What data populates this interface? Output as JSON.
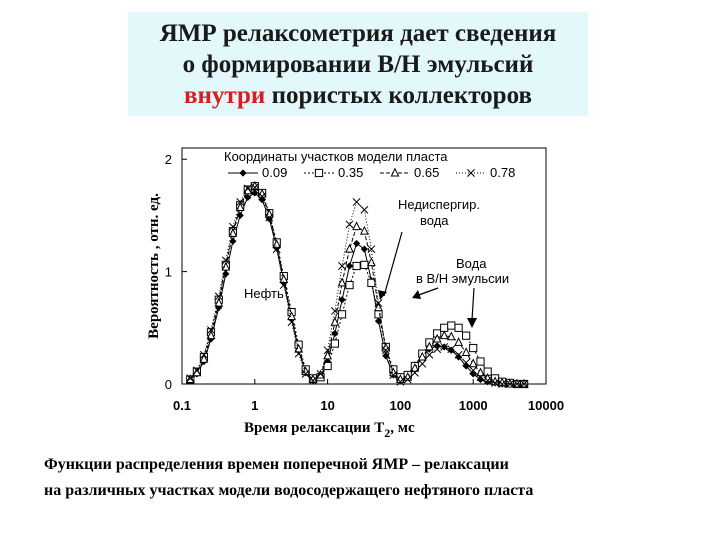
{
  "slide": {
    "title_line1": "ЯМР релаксометрия дает сведения",
    "title_line2": "о формировании В/Н эмульсий",
    "title_line3_accent": "внутри",
    "title_line3_rest": " пористых коллекторов",
    "accent_color": "#d62020",
    "title_bg": "#e3f8fb",
    "caption_line1": "Функции распределения времен поперечной ЯМР – релаксации",
    "caption_line2": "на различных участках модели водосодержащего нефтяного пласта"
  },
  "chart_data": {
    "type": "line",
    "title": "",
    "ylabel": "Вероятность    ,   отн. ед.",
    "xlabel_main": "Время релаксации T",
    "xlabel_sub": "2",
    "xlabel_unit": ",   мс",
    "x_scale": "log",
    "xlim": [
      0.1,
      10000
    ],
    "ylim": [
      0,
      2.1
    ],
    "x_ticks": [
      0.1,
      1,
      10,
      100,
      1000,
      10000
    ],
    "x_tick_labels": [
      "0.1",
      "1",
      "10",
      "100",
      "1000",
      "10000"
    ],
    "y_ticks": [
      0,
      1,
      2
    ],
    "y_tick_labels": [
      "0",
      "1",
      "2"
    ],
    "legend": {
      "title": "Координаты участков модели пласта",
      "placement": "top-center"
    },
    "annotations": [
      {
        "text": "Нефть"
      },
      {
        "text": "Недиспергир."
      },
      {
        "text": "вода"
      },
      {
        "text": "Вода"
      },
      {
        "text": "в В/Н эмульсии"
      }
    ],
    "series": [
      {
        "name": "0.09",
        "marker": "diamond",
        "x": [
          0.13,
          0.16,
          0.2,
          0.25,
          0.32,
          0.4,
          0.5,
          0.63,
          0.8,
          1,
          1.26,
          1.58,
          2,
          2.5,
          3.2,
          4,
          5,
          6.3,
          8,
          10,
          12.6,
          15.8,
          20,
          25,
          32,
          40,
          50,
          63,
          80,
          100,
          126,
          158,
          200,
          250,
          320,
          400,
          500,
          630,
          800,
          1000,
          1260,
          1580,
          2000,
          2500,
          3200,
          4000,
          5000
        ],
        "values": [
          0.03,
          0.09,
          0.2,
          0.4,
          0.68,
          0.98,
          1.27,
          1.5,
          1.66,
          1.7,
          1.64,
          1.47,
          1.21,
          0.9,
          0.58,
          0.3,
          0.1,
          0.03,
          0.06,
          0.2,
          0.45,
          0.75,
          1.05,
          1.25,
          1.2,
          0.92,
          0.56,
          0.25,
          0.08,
          0.04,
          0.08,
          0.17,
          0.25,
          0.31,
          0.34,
          0.33,
          0.3,
          0.24,
          0.16,
          0.09,
          0.04,
          0.02,
          0.01,
          0.0,
          0.0,
          0.0,
          0.0
        ]
      },
      {
        "name": "0.35",
        "marker": "square",
        "x": [
          0.13,
          0.16,
          0.2,
          0.25,
          0.32,
          0.4,
          0.5,
          0.63,
          0.8,
          1,
          1.26,
          1.58,
          2,
          2.5,
          3.2,
          4,
          5,
          6.3,
          8,
          10,
          12.6,
          15.8,
          20,
          25,
          32,
          40,
          50,
          63,
          80,
          100,
          126,
          158,
          200,
          250,
          320,
          400,
          500,
          630,
          800,
          1000,
          1260,
          1580,
          2000,
          2500,
          3200,
          4000,
          5000
        ],
        "values": [
          0.04,
          0.11,
          0.24,
          0.46,
          0.75,
          1.06,
          1.36,
          1.59,
          1.73,
          1.76,
          1.7,
          1.52,
          1.26,
          0.96,
          0.64,
          0.35,
          0.13,
          0.05,
          0.06,
          0.16,
          0.36,
          0.62,
          0.88,
          1.05,
          1.06,
          0.9,
          0.62,
          0.33,
          0.13,
          0.06,
          0.08,
          0.16,
          0.27,
          0.37,
          0.45,
          0.5,
          0.52,
          0.5,
          0.43,
          0.32,
          0.2,
          0.11,
          0.05,
          0.02,
          0.01,
          0.0,
          0.0
        ]
      },
      {
        "name": "0.65",
        "marker": "triangle",
        "x": [
          0.13,
          0.16,
          0.2,
          0.25,
          0.32,
          0.4,
          0.5,
          0.63,
          0.8,
          1,
          1.26,
          1.58,
          2,
          2.5,
          3.2,
          4,
          5,
          6.3,
          8,
          10,
          12.6,
          15.8,
          20,
          25,
          32,
          40,
          50,
          63,
          80,
          100,
          126,
          158,
          200,
          250,
          320,
          400,
          500,
          630,
          800,
          1000,
          1260,
          1580,
          2000,
          2500,
          3200,
          4000,
          5000
        ],
        "values": [
          0.04,
          0.1,
          0.22,
          0.43,
          0.72,
          1.04,
          1.34,
          1.57,
          1.72,
          1.76,
          1.69,
          1.51,
          1.24,
          0.93,
          0.6,
          0.31,
          0.11,
          0.04,
          0.08,
          0.25,
          0.55,
          0.9,
          1.2,
          1.4,
          1.36,
          1.08,
          0.68,
          0.32,
          0.1,
          0.04,
          0.06,
          0.14,
          0.24,
          0.33,
          0.4,
          0.43,
          0.42,
          0.37,
          0.28,
          0.18,
          0.1,
          0.05,
          0.02,
          0.01,
          0.0,
          0.0,
          0.0
        ]
      },
      {
        "name": "0.78",
        "marker": "x",
        "x": [
          0.13,
          0.16,
          0.2,
          0.25,
          0.32,
          0.4,
          0.5,
          0.63,
          0.8,
          1,
          1.26,
          1.58,
          2,
          2.5,
          3.2,
          4,
          5,
          6.3,
          8,
          10,
          12.6,
          15.8,
          20,
          25,
          32,
          40,
          50,
          63,
          80,
          100,
          126,
          158,
          200,
          250,
          320,
          400,
          500,
          630,
          800,
          1000,
          1260,
          1580,
          2000,
          2500,
          3200,
          4000,
          5000
        ],
        "values": [
          0.05,
          0.12,
          0.26,
          0.48,
          0.78,
          1.1,
          1.4,
          1.62,
          1.74,
          1.75,
          1.67,
          1.48,
          1.2,
          0.88,
          0.55,
          0.27,
          0.09,
          0.03,
          0.09,
          0.3,
          0.65,
          1.05,
          1.42,
          1.62,
          1.55,
          1.2,
          0.72,
          0.3,
          0.08,
          0.02,
          0.04,
          0.1,
          0.18,
          0.26,
          0.31,
          0.33,
          0.31,
          0.26,
          0.19,
          0.12,
          0.06,
          0.03,
          0.01,
          0.0,
          0.0,
          0.0,
          0.0
        ]
      }
    ]
  }
}
